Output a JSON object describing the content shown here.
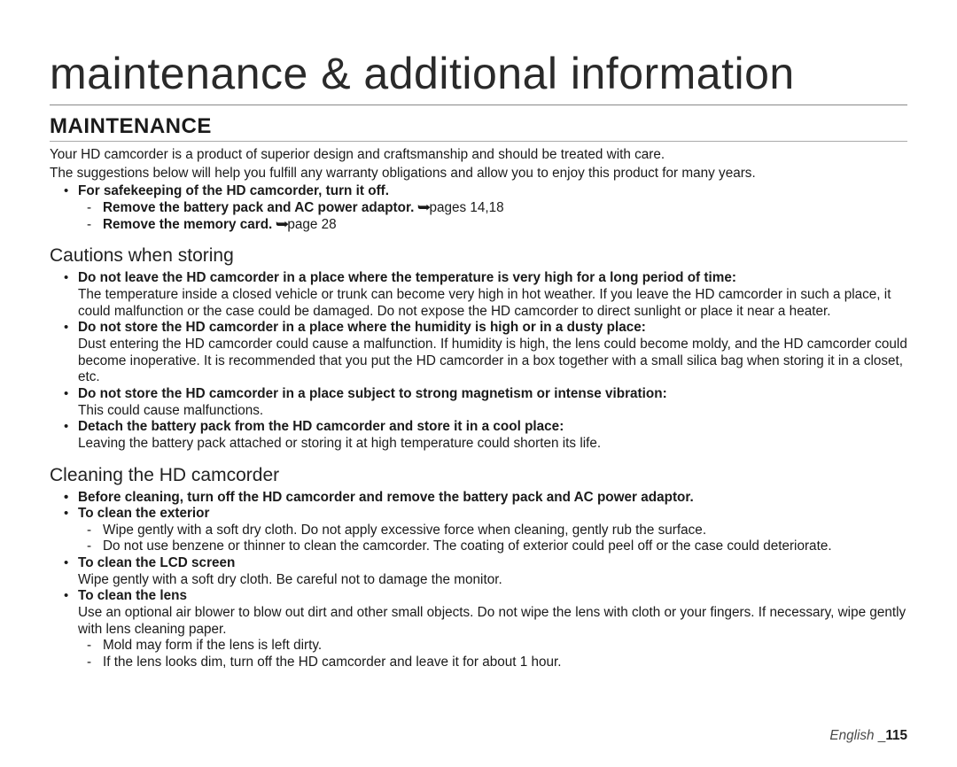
{
  "page": {
    "title": "maintenance & additional information",
    "footer_lang": "English",
    "footer_sep": " _",
    "footer_page": "115"
  },
  "maintenance": {
    "heading": "MAINTENANCE",
    "intro1": "Your HD camcorder is a product of superior design and craftsmanship and should be treated with care.",
    "intro2": "The suggestions below will help you fulfill any warranty obligations and allow you to enjoy this product for many years.",
    "safekeep": {
      "title": "For safekeeping of the HD camcorder, turn it off.",
      "sub1_bold": "Remove the battery pack and AC power adaptor. ",
      "sub1_ref": "pages 14,18",
      "sub2_bold": "Remove the memory card. ",
      "sub2_ref": "page 28"
    }
  },
  "cautions": {
    "heading": "Cautions when storing",
    "items": [
      {
        "bold": "Do not leave the HD camcorder in a place where the temperature is very high for a long period of time:",
        "desc": "The temperature inside a closed vehicle or trunk can become very high in hot weather. If you leave the HD camcorder in such a place, it could malfunction or the case could be damaged. Do not expose the HD camcorder to direct sunlight or place it near a heater."
      },
      {
        "bold": "Do not store the HD camcorder in a place where the humidity is high or in a dusty place:",
        "desc": "Dust entering the HD camcorder could cause a malfunction. If humidity is high, the lens could become moldy, and the HD camcorder could become inoperative. It is recommended that you put the HD camcorder in a box together with a small silica bag when storing it in a closet, etc."
      },
      {
        "bold": "Do not store the HD camcorder in a place subject to strong magnetism or intense vibration:",
        "desc": "This could cause malfunctions."
      },
      {
        "bold": "Detach the battery pack from the HD camcorder and store it in a cool place:",
        "desc": "Leaving the battery pack attached or storing it at high temperature could shorten its life."
      }
    ]
  },
  "cleaning": {
    "heading": "Cleaning the HD camcorder",
    "intro": "Before cleaning, turn off the HD camcorder and remove the battery pack and AC power adaptor.",
    "items": [
      {
        "title": "To clean the exterior",
        "sub": [
          "Wipe gently with a soft dry cloth. Do not apply excessive force when cleaning, gently rub the surface.",
          "Do not use benzene or thinner to clean the camcorder. The coating of exterior could peel off or the case could deteriorate."
        ]
      },
      {
        "title": "To clean the LCD screen",
        "desc": "Wipe gently with a soft dry cloth. Be careful not to damage the monitor."
      },
      {
        "title": "To clean the lens",
        "desc": "Use an optional air blower to blow out dirt and other small objects. Do not wipe the lens with cloth or your fingers. If necessary, wipe gently with lens cleaning paper.",
        "sub": [
          "Mold may form if the lens is left dirty.",
          "If the lens looks dim, turn off the HD camcorder and leave it for about 1 hour."
        ]
      }
    ]
  }
}
